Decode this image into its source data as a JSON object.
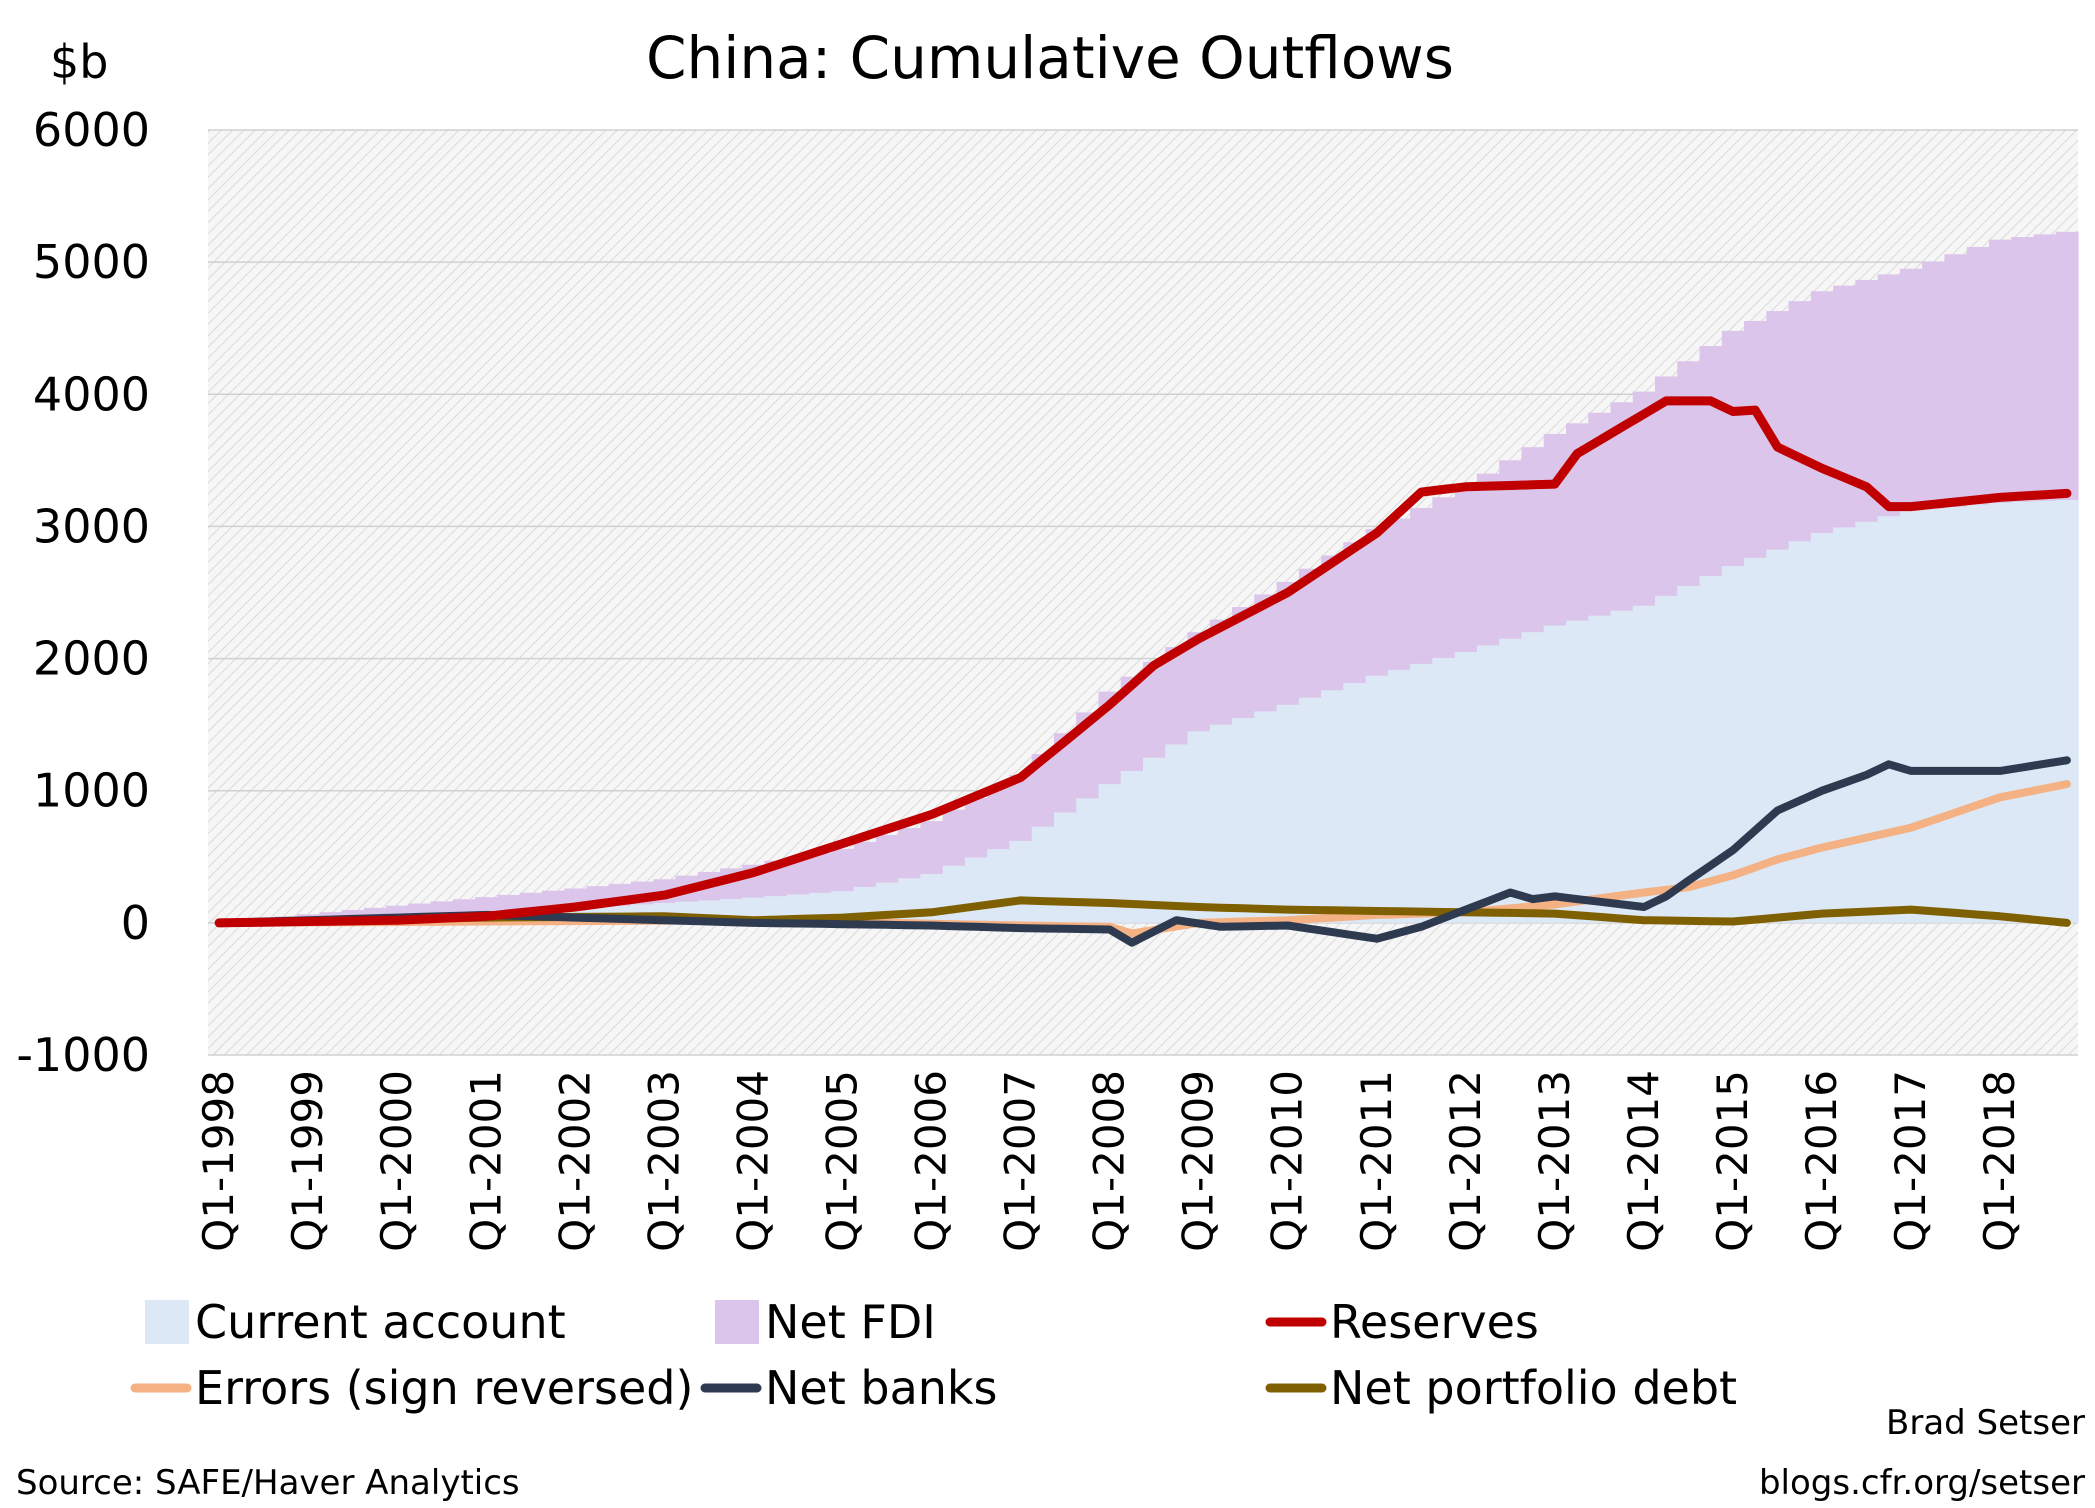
{
  "chart_data": {
    "type": "area",
    "title": "China: Cumulative Outflows",
    "ylabel": "$b",
    "ylim": [
      -1000,
      6000
    ],
    "yticks": [
      6000,
      5000,
      4000,
      3000,
      2000,
      1000,
      0,
      -1000
    ],
    "x_tick_labels": [
      "Q1-1998",
      "Q1-1999",
      "Q1-2000",
      "Q1-2001",
      "Q1-2002",
      "Q1-2003",
      "Q1-2004",
      "Q1-2005",
      "Q1-2006",
      "Q1-2007",
      "Q1-2008",
      "Q1-2009",
      "Q1-2010",
      "Q1-2011",
      "Q1-2012",
      "Q1-2013",
      "Q1-2014",
      "Q1-2015",
      "Q1-2016",
      "Q1-2017",
      "Q1-2018"
    ],
    "x_start": "Q1-1998",
    "x_end": "Q4-2018",
    "frequency": "quarterly",
    "grid": true,
    "legend_position": "bottom",
    "series": [
      {
        "name": "Current account",
        "kind": "stacked-area",
        "color": "#dce8f5",
        "points": [
          [
            "Q1-1998",
            0
          ],
          [
            "Q1-2000",
            60
          ],
          [
            "Q1-2002",
            110
          ],
          [
            "Q1-2003",
            150
          ],
          [
            "Q1-2004",
            190
          ],
          [
            "Q1-2005",
            240
          ],
          [
            "Q1-2006",
            370
          ],
          [
            "Q1-2007",
            620
          ],
          [
            "Q1-2008",
            1050
          ],
          [
            "Q1-2009",
            1450
          ],
          [
            "Q1-2010",
            1650
          ],
          [
            "Q1-2011",
            1870
          ],
          [
            "Q1-2012",
            2050
          ],
          [
            "Q1-2013",
            2250
          ],
          [
            "Q1-2014",
            2400
          ],
          [
            "Q1-2015",
            2700
          ],
          [
            "Q1-2016",
            2950
          ],
          [
            "Q1-2017",
            3120
          ],
          [
            "Q1-2018",
            3180
          ],
          [
            "Q4-2018",
            3200
          ]
        ]
      },
      {
        "name": "Net FDI",
        "kind": "stacked-area",
        "color": "#dcc5ea",
        "points": [
          [
            "Q1-1998",
            0
          ],
          [
            "Q1-2000",
            130
          ],
          [
            "Q1-2002",
            260
          ],
          [
            "Q1-2003",
            330
          ],
          [
            "Q1-2004",
            440
          ],
          [
            "Q1-2005",
            560
          ],
          [
            "Q1-2006",
            770
          ],
          [
            "Q1-2007",
            1120
          ],
          [
            "Q1-2008",
            1750
          ],
          [
            "Q1-2009",
            2200
          ],
          [
            "Q1-2010",
            2580
          ],
          [
            "Q1-2011",
            2980
          ],
          [
            "Q1-2012",
            3300
          ],
          [
            "Q1-2013",
            3700
          ],
          [
            "Q1-2014",
            4020
          ],
          [
            "Q1-2015",
            4480
          ],
          [
            "Q1-2016",
            4780
          ],
          [
            "Q1-2017",
            4950
          ],
          [
            "Q1-2018",
            5170
          ],
          [
            "Q4-2018",
            5230
          ]
        ]
      },
      {
        "name": "Reserves",
        "kind": "line",
        "color": "#c00000",
        "points": [
          [
            "Q1-1998",
            0
          ],
          [
            "Q1-2000",
            20
          ],
          [
            "Q1-2001",
            50
          ],
          [
            "Q1-2002",
            120
          ],
          [
            "Q1-2003",
            210
          ],
          [
            "Q1-2004",
            380
          ],
          [
            "Q1-2005",
            600
          ],
          [
            "Q1-2006",
            820
          ],
          [
            "Q1-2007",
            1100
          ],
          [
            "Q1-2008",
            1650
          ],
          [
            "Q3-2008",
            1950
          ],
          [
            "Q1-2009",
            2150
          ],
          [
            "Q1-2010",
            2500
          ],
          [
            "Q1-2011",
            2950
          ],
          [
            "Q3-2011",
            3260
          ],
          [
            "Q1-2012",
            3300
          ],
          [
            "Q1-2013",
            3320
          ],
          [
            "Q2-2013",
            3550
          ],
          [
            "Q1-2014",
            3850
          ],
          [
            "Q2-2014",
            3950
          ],
          [
            "Q4-2014",
            3950
          ],
          [
            "Q1-2015",
            3870
          ],
          [
            "Q2-2015",
            3880
          ],
          [
            "Q3-2015",
            3600
          ],
          [
            "Q1-2016",
            3440
          ],
          [
            "Q3-2016",
            3300
          ],
          [
            "Q4-2016",
            3150
          ],
          [
            "Q1-2017",
            3150
          ],
          [
            "Q1-2018",
            3220
          ],
          [
            "Q4-2018",
            3250
          ]
        ]
      },
      {
        "name": "Errors (sign reversed)",
        "kind": "line",
        "color": "#f4b183",
        "points": [
          [
            "Q1-1998",
            0
          ],
          [
            "Q1-2004",
            20
          ],
          [
            "Q1-2007",
            -20
          ],
          [
            "Q1-2008",
            -30
          ],
          [
            "Q2-2008",
            -80
          ],
          [
            "Q1-2009",
            0
          ],
          [
            "Q1-2010",
            20
          ],
          [
            "Q1-2011",
            60
          ],
          [
            "Q1-2012",
            80
          ],
          [
            "Q1-2013",
            140
          ],
          [
            "Q1-2014",
            230
          ],
          [
            "Q3-2014",
            270
          ],
          [
            "Q1-2015",
            360
          ],
          [
            "Q3-2015",
            480
          ],
          [
            "Q1-2016",
            570
          ],
          [
            "Q1-2017",
            720
          ],
          [
            "Q1-2018",
            950
          ],
          [
            "Q4-2018",
            1050
          ]
        ]
      },
      {
        "name": "Net banks",
        "kind": "line",
        "color": "#2e3a4f",
        "points": [
          [
            "Q1-1998",
            0
          ],
          [
            "Q1-2001",
            60
          ],
          [
            "Q1-2004",
            0
          ],
          [
            "Q1-2005",
            -10
          ],
          [
            "Q1-2006",
            -20
          ],
          [
            "Q1-2007",
            -40
          ],
          [
            "Q1-2008",
            -50
          ],
          [
            "Q2-2008",
            -150
          ],
          [
            "Q4-2008",
            20
          ],
          [
            "Q2-2009",
            -30
          ],
          [
            "Q1-2010",
            -20
          ],
          [
            "Q1-2011",
            -120
          ],
          [
            "Q3-2011",
            -30
          ],
          [
            "Q1-2012",
            100
          ],
          [
            "Q3-2012",
            230
          ],
          [
            "Q4-2012",
            180
          ],
          [
            "Q1-2013",
            200
          ],
          [
            "Q1-2014",
            120
          ],
          [
            "Q2-2014",
            200
          ],
          [
            "Q3-2014",
            320
          ],
          [
            "Q1-2015",
            550
          ],
          [
            "Q3-2015",
            850
          ],
          [
            "Q1-2016",
            1000
          ],
          [
            "Q3-2016",
            1120
          ],
          [
            "Q4-2016",
            1200
          ],
          [
            "Q1-2017",
            1150
          ],
          [
            "Q1-2018",
            1150
          ],
          [
            "Q4-2018",
            1230
          ]
        ]
      },
      {
        "name": "Net portfolio debt",
        "kind": "line",
        "color": "#7f6000",
        "points": [
          [
            "Q1-1998",
            0
          ],
          [
            "Q1-2001",
            40
          ],
          [
            "Q1-2003",
            50
          ],
          [
            "Q1-2004",
            20
          ],
          [
            "Q1-2005",
            40
          ],
          [
            "Q1-2006",
            80
          ],
          [
            "Q1-2007",
            170
          ],
          [
            "Q1-2008",
            150
          ],
          [
            "Q1-2009",
            120
          ],
          [
            "Q1-2010",
            100
          ],
          [
            "Q1-2011",
            90
          ],
          [
            "Q1-2012",
            80
          ],
          [
            "Q1-2013",
            70
          ],
          [
            "Q1-2014",
            20
          ],
          [
            "Q1-2015",
            10
          ],
          [
            "Q1-2016",
            70
          ],
          [
            "Q1-2017",
            100
          ],
          [
            "Q1-2018",
            50
          ],
          [
            "Q4-2018",
            0
          ]
        ]
      }
    ],
    "annotations": [
      "Brad Setser",
      "blogs.cfr.org/setser"
    ],
    "source": "Source: SAFE/Haver Analytics"
  }
}
